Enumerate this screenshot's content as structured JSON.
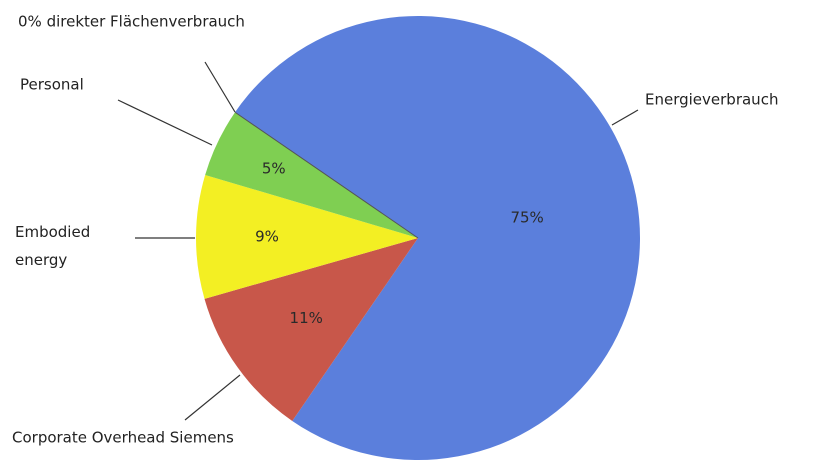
{
  "chart_data": {
    "type": "pie",
    "categories": [
      "Energieverbrauch",
      "Corporate Overhead Siemens",
      "Embodied energy",
      "Personal",
      "0% direkter Flächenverbrauch"
    ],
    "values": [
      75,
      11,
      9,
      5,
      0
    ],
    "value_labels": [
      "75%",
      "11%",
      "9%",
      "5%",
      null
    ],
    "colors": [
      "#5b7fdc",
      "#c8574a",
      "#f3ef23",
      "#7fcf52",
      "#7fcf52"
    ]
  }
}
